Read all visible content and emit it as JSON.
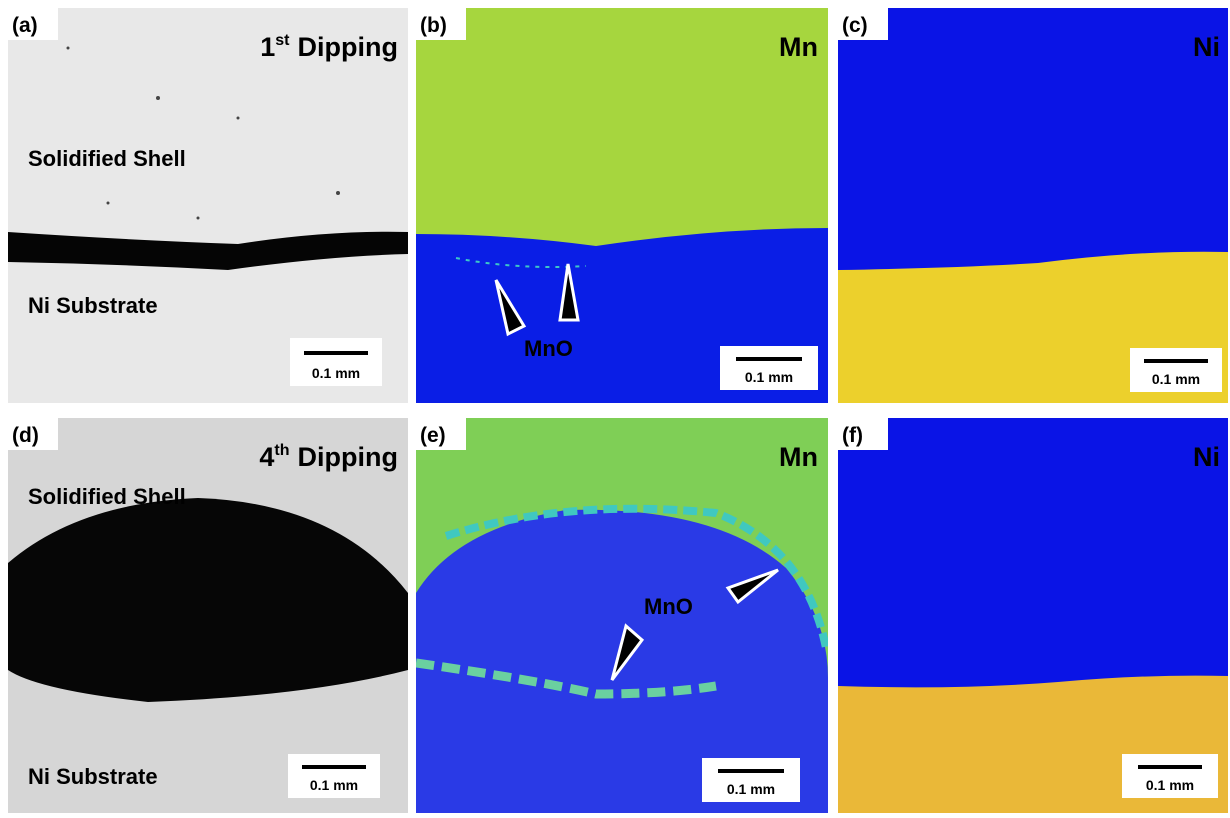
{
  "panels": [
    {
      "label": "(a)",
      "title": {
        "base": "1",
        "sup": "st",
        "rest": "Dipping"
      },
      "annotations": [
        "Solidified Shell",
        "Ni Substrate"
      ],
      "scale_bar": "0.1 mm"
    },
    {
      "label": "(b)",
      "title": "Mn",
      "annotations": [
        "MnO"
      ],
      "scale_bar": "0.1 mm"
    },
    {
      "label": "(c)",
      "title": "Ni",
      "scale_bar": "0.1 mm"
    },
    {
      "label": "(d)",
      "title": {
        "base": "4",
        "sup": "th",
        "rest": "Dipping"
      },
      "annotations": [
        "Solidified Shell",
        "Ni Substrate"
      ],
      "scale_bar": "0.1 mm"
    },
    {
      "label": "(e)",
      "title": "Mn",
      "annotations": [
        "MnO"
      ],
      "scale_bar": "0.1 mm"
    },
    {
      "label": "(f)",
      "title": "Ni",
      "scale_bar": "0.1 mm"
    }
  ]
}
